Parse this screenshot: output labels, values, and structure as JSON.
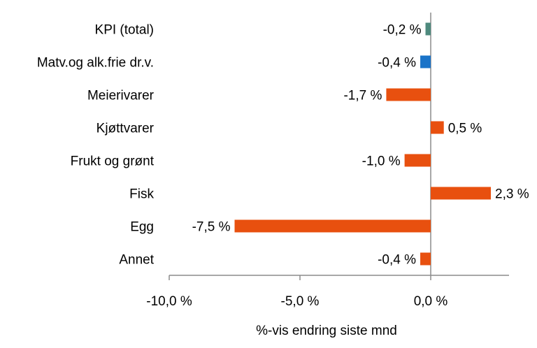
{
  "chart_data": {
    "type": "bar",
    "orientation": "horizontal",
    "title": "",
    "xlabel": "%-vis endring siste mnd",
    "ylabel": "",
    "xlim": [
      -10,
      2.8
    ],
    "xticks": [
      -10,
      -5,
      0
    ],
    "xtick_labels": [
      "-10,0 %",
      "-5,0 %",
      "0,0 %"
    ],
    "grid": false,
    "legend": "none",
    "categories": [
      "KPI (total)",
      "Matv.og alk.frie dr.v.",
      "Meierivarer",
      "Kjøttvarer",
      "Frukt og grønt",
      "Fisk",
      "Egg",
      "Annet"
    ],
    "values": [
      -0.2,
      -0.4,
      -1.7,
      0.5,
      -1.0,
      2.3,
      -7.5,
      -0.4
    ],
    "value_labels": [
      "-0,2 %",
      "-0,4 %",
      "-1,7 %",
      "0,5 %",
      "-1,0 %",
      "2,3 %",
      "-7,5 %",
      "-0,4 %"
    ],
    "colors": [
      "#4e8a7e",
      "#1a73c8",
      "#e8500f",
      "#e8500f",
      "#e8500f",
      "#e8500f",
      "#e8500f",
      "#e8500f"
    ]
  }
}
